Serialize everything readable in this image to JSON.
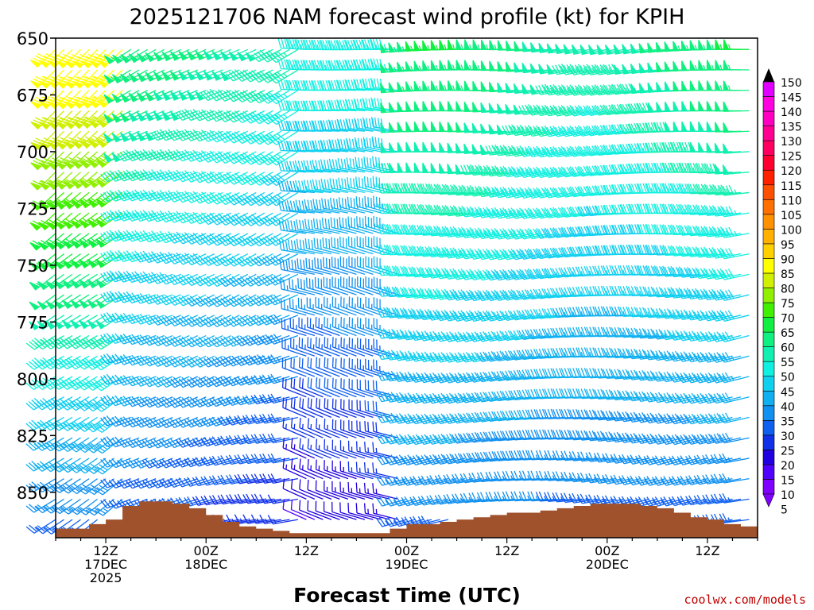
{
  "chart_data": {
    "type": "wind-barb-time-height",
    "title": "2025121706 NAM forecast wind profile (kt) for KPIH",
    "xlabel": "Forecast Time (UTC)",
    "credit": "coolwx.com/models",
    "y_pressure_range": [
      650,
      870
    ],
    "y_ticks": [
      {
        "value": 650,
        "label": "650"
      },
      {
        "value": 675,
        "label": "675"
      },
      {
        "value": 700,
        "label": "700"
      },
      {
        "value": 725,
        "label": "725"
      },
      {
        "value": 750,
        "label": "750"
      },
      {
        "value": 775,
        "label": "775"
      },
      {
        "value": 800,
        "label": "800"
      },
      {
        "value": 825,
        "label": "825"
      },
      {
        "value": 850,
        "label": "850"
      }
    ],
    "x_hour_range": [
      0,
      84
    ],
    "x_ticks": [
      {
        "hour": 6,
        "lines": [
          "12Z",
          "17DEC",
          "2025"
        ]
      },
      {
        "hour": 18,
        "lines": [
          "00Z",
          "18DEC"
        ]
      },
      {
        "hour": 30,
        "lines": [
          "12Z"
        ]
      },
      {
        "hour": 42,
        "lines": [
          "00Z",
          "19DEC"
        ]
      },
      {
        "hour": 54,
        "lines": [
          "12Z"
        ]
      },
      {
        "hour": 66,
        "lines": [
          "00Z",
          "20DEC"
        ]
      },
      {
        "hour": 78,
        "lines": [
          "12Z"
        ]
      }
    ],
    "colorbar": {
      "label_values": [
        "5",
        "10",
        "15",
        "20",
        "25",
        "30",
        "35",
        "40",
        "45",
        "50",
        "55",
        "60",
        "65",
        "70",
        "75",
        "80",
        "85",
        "90",
        "95",
        "100",
        "105",
        "110",
        "115",
        "120",
        "125",
        "130",
        "135",
        "140",
        "145",
        "150"
      ],
      "colors": [
        "#8000ff",
        "#5000ff",
        "#2000e0",
        "#1030e8",
        "#1060f0",
        "#1090f0",
        "#10b0f0",
        "#10d0f0",
        "#10f0e0",
        "#10f0b0",
        "#10f080",
        "#10f040",
        "#40f000",
        "#90f000",
        "#d0f000",
        "#ffff00",
        "#ffd000",
        "#ffb000",
        "#ff9000",
        "#ff7000",
        "#ff5000",
        "#ff2000",
        "#ff0030",
        "#ff0060",
        "#ff0090",
        "#ff00c0",
        "#ff00e0",
        "#e000ff"
      ]
    },
    "terrain": {
      "color": "#a0522d",
      "description": "surface pressure, hPa",
      "surface_pressure_by_hour": [
        [
          0,
          866
        ],
        [
          2,
          866
        ],
        [
          4,
          864
        ],
        [
          6,
          862
        ],
        [
          8,
          856
        ],
        [
          10,
          854
        ],
        [
          12,
          854
        ],
        [
          14,
          855
        ],
        [
          16,
          857
        ],
        [
          18,
          860
        ],
        [
          20,
          863
        ],
        [
          22,
          865
        ],
        [
          24,
          866
        ],
        [
          26,
          867
        ],
        [
          28,
          868
        ],
        [
          30,
          868
        ],
        [
          32,
          868
        ],
        [
          34,
          868
        ],
        [
          36,
          868
        ],
        [
          38,
          868
        ],
        [
          40,
          866
        ],
        [
          42,
          864
        ],
        [
          44,
          864
        ],
        [
          46,
          863
        ],
        [
          48,
          862
        ],
        [
          50,
          861
        ],
        [
          52,
          860
        ],
        [
          54,
          859
        ],
        [
          56,
          859
        ],
        [
          58,
          858
        ],
        [
          60,
          857
        ],
        [
          62,
          856
        ],
        [
          64,
          855
        ],
        [
          66,
          855
        ],
        [
          68,
          855
        ],
        [
          70,
          856
        ],
        [
          72,
          857
        ],
        [
          74,
          859
        ],
        [
          76,
          861
        ],
        [
          78,
          862
        ],
        [
          80,
          864
        ],
        [
          82,
          865
        ],
        [
          84,
          866
        ]
      ]
    },
    "wind_field_regimes": [
      {
        "hours": "0-9",
        "upper_speed_kt": 80,
        "lower_speed_kt": 25,
        "direction": "southwest"
      },
      {
        "hours": "9-30",
        "upper_speed_kt": 55,
        "lower_speed_kt": 20,
        "direction": "southwest to west"
      },
      {
        "hours": "30-42",
        "upper_speed_kt": 45,
        "lower_speed_kt": 10,
        "direction": "west-northwest"
      },
      {
        "hours": "42-84",
        "upper_speed_kt": 55,
        "lower_speed_kt": 25,
        "direction": "west"
      }
    ]
  }
}
